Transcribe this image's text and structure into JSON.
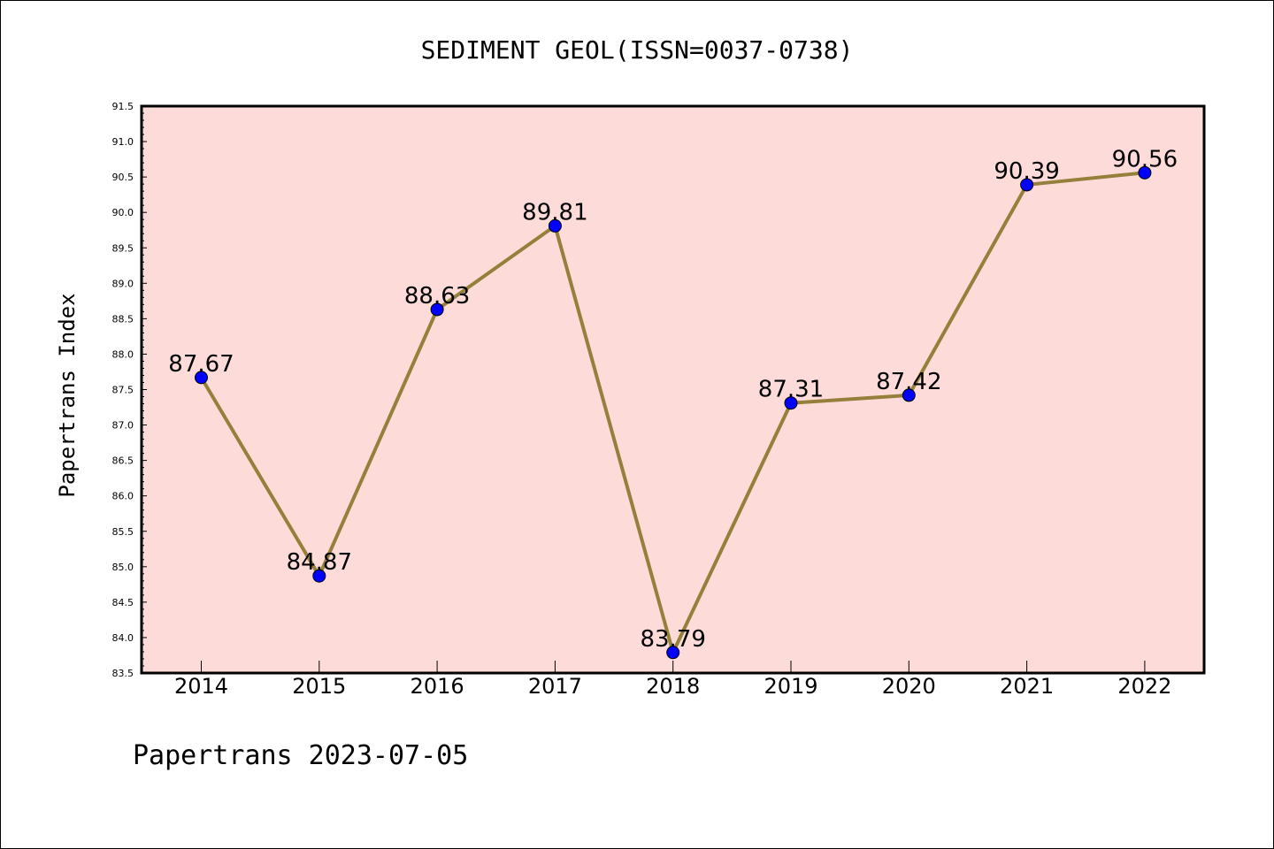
{
  "chart_data": {
    "type": "line",
    "title": "SEDIMENT GEOL(ISSN=0037-0738)",
    "xlabel": "",
    "ylabel": "Papertrans Index",
    "categories": [
      "2014",
      "2015",
      "2016",
      "2017",
      "2018",
      "2019",
      "2020",
      "2021",
      "2022"
    ],
    "series": [
      {
        "values": [
          87.67,
          84.87,
          88.63,
          89.81,
          83.79,
          87.31,
          87.42,
          90.39,
          90.56
        ],
        "data_labels": [
          "87.67",
          "84.87",
          "88.63",
          "89.81",
          "83.79",
          "87.31",
          "87.42",
          "90.39",
          "90.56"
        ],
        "line_color": "#94803a",
        "marker_color": "#0000ff"
      }
    ],
    "ylim": [
      83.5,
      91.5
    ],
    "y_ticks": [
      "83.5",
      "84.0",
      "84.5",
      "85.0",
      "85.5",
      "86.0",
      "86.5",
      "87.0",
      "87.5",
      "88.0",
      "88.5",
      "89.0",
      "89.5",
      "90.0",
      "90.5",
      "91.0",
      "91.5"
    ],
    "grid": false,
    "legend": "none",
    "plot_background": "#fddbd8"
  },
  "footer": "Papertrans 2023-07-05"
}
